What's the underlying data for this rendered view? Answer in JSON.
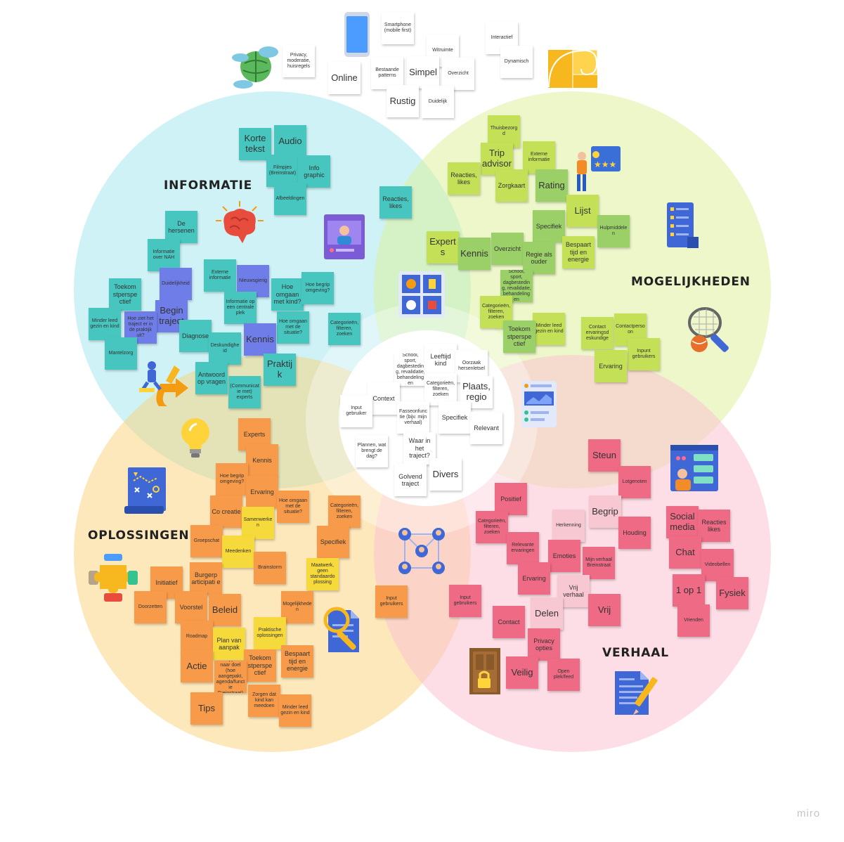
{
  "labels": {
    "informatie": "INFORMATIE",
    "mogelijkheden": "MOGELIJKHEDEN",
    "oplossingen": "OPLOSSINGEN",
    "verhaal": "VERHAAL"
  },
  "watermark": "miro",
  "colors": {
    "informatie_circle": "#cdf1f4",
    "mogelijkheden_circle": "#edf6c4",
    "oplossingen_circle": "#fce7b2",
    "verhaal_circle": "#fddbe4",
    "center_circle": "#ffffff"
  },
  "icons": [
    "globe-cloud-icon",
    "smartphone-icon",
    "golden-ratio-icon",
    "brain-icon",
    "video-profile-icon",
    "rating-person-icon",
    "checklist-icon",
    "grid-options-icon",
    "tennis-racket-icon",
    "runner-direction-icon",
    "lightbulb-icon",
    "analytics-card-icon",
    "map-plan-icon",
    "puzzle-icon",
    "network-people-icon",
    "document-search-icon",
    "social-profile-icon",
    "locked-door-icon",
    "document-pencil-icon"
  ],
  "notes": [
    {
      "text": "Privacy, moderatie, huisregels",
      "color": "white",
      "size": "sm"
    },
    {
      "text": "Smartphone (mobile first)",
      "color": "white",
      "size": "sm"
    },
    {
      "text": "Witruimte",
      "color": "white",
      "size": "sm"
    },
    {
      "text": "Interactief",
      "color": "white",
      "size": "sm"
    },
    {
      "text": "Dynamisch",
      "color": "white",
      "size": "sm"
    },
    {
      "text": "Online",
      "color": "white",
      "size": "lg"
    },
    {
      "text": "Bestaande patterns",
      "color": "white",
      "size": "sm"
    },
    {
      "text": "Simpel",
      "color": "white",
      "size": "lg"
    },
    {
      "text": "Overzicht",
      "color": "white",
      "size": "sm"
    },
    {
      "text": "Rustig",
      "color": "white",
      "size": "lg"
    },
    {
      "text": "Duidelijk",
      "color": "white",
      "size": "sm"
    },
    {
      "text": "Korte tekst",
      "color": "teal",
      "size": "lg"
    },
    {
      "text": "Audio",
      "color": "teal",
      "size": "lg"
    },
    {
      "text": "Filmpjes (Breinstraat)",
      "color": "teal",
      "size": "sm"
    },
    {
      "text": "Info graphic",
      "color": "teal",
      "size": "md"
    },
    {
      "text": "Afbeeldingen",
      "color": "teal",
      "size": "sm"
    },
    {
      "text": "Reacties, likes",
      "color": "teal",
      "size": "md"
    },
    {
      "text": "De hersenen",
      "color": "teal",
      "size": "md"
    },
    {
      "text": "Informatie over NAH",
      "color": "teal",
      "size": "sm"
    },
    {
      "text": "Duidelijkheid",
      "color": "blue",
      "size": "sm"
    },
    {
      "text": "Externe informatie",
      "color": "teal",
      "size": "sm"
    },
    {
      "text": "Nieuwsgierig",
      "color": "blue",
      "size": "sm"
    },
    {
      "text": "Hoe omgaan met kind?",
      "color": "teal",
      "size": "md"
    },
    {
      "text": "Hoe begrip omgeving?",
      "color": "teal",
      "size": "sm"
    },
    {
      "text": "Toekom stperspe ctief",
      "color": "teal",
      "size": "md"
    },
    {
      "text": "Begin traject",
      "color": "blue",
      "size": "lg"
    },
    {
      "text": "Informatie op een centrale plek",
      "color": "teal",
      "size": "sm"
    },
    {
      "text": "Hoe omgaan met de situatie?",
      "color": "teal",
      "size": "sm"
    },
    {
      "text": "Categorieën, filteren, zoeken",
      "color": "teal",
      "size": "sm"
    },
    {
      "text": "Minder leed gezin en kind",
      "color": "teal",
      "size": "sm"
    },
    {
      "text": "Hoe ziet het traject er in de praktijk uit?",
      "color": "blue",
      "size": "sm"
    },
    {
      "text": "Diagnose",
      "color": "teal",
      "size": "md"
    },
    {
      "text": "Kennis",
      "color": "blue",
      "size": "lg"
    },
    {
      "text": "Deskundigheid",
      "color": "teal",
      "size": "sm"
    },
    {
      "text": "Mantelzorg",
      "color": "teal",
      "size": "sm"
    },
    {
      "text": "Antwoord op vragen",
      "color": "teal",
      "size": "md"
    },
    {
      "text": "Praktijk",
      "color": "teal",
      "size": "lg"
    },
    {
      "text": "(Communicatie met) experts",
      "color": "teal",
      "size": "sm"
    },
    {
      "text": "Thuisbezorgd",
      "color": "lime",
      "size": "sm"
    },
    {
      "text": "Trip advisor",
      "color": "lime",
      "size": "lg"
    },
    {
      "text": "Externe informatie",
      "color": "lime",
      "size": "sm"
    },
    {
      "text": "Reacties, likes",
      "color": "lime",
      "size": "md"
    },
    {
      "text": "Zorgkaart",
      "color": "lime",
      "size": "md"
    },
    {
      "text": "Rating",
      "color": "green",
      "size": "lg"
    },
    {
      "text": "Lijst",
      "color": "lime",
      "size": "lg"
    },
    {
      "text": "Specifiek",
      "color": "green",
      "size": "md"
    },
    {
      "text": "Hulpmiddelen",
      "color": "green",
      "size": "sm"
    },
    {
      "text": "Experts",
      "color": "lime",
      "size": "lg"
    },
    {
      "text": "Kennis",
      "color": "green",
      "size": "lg"
    },
    {
      "text": "Overzicht",
      "color": "green",
      "size": "md"
    },
    {
      "text": "Regie als ouder",
      "color": "green",
      "size": "md"
    },
    {
      "text": "Bespaart tijd en energie",
      "color": "lime",
      "size": "md"
    },
    {
      "text": "School, sport, dagbesteding, revalidatie, behandelingen",
      "color": "green",
      "size": "sm"
    },
    {
      "text": "Categorieën, filteren, zoeken",
      "color": "lime",
      "size": "sm"
    },
    {
      "text": "Minder leed gezin en kind",
      "color": "lime",
      "size": "sm"
    },
    {
      "text": "Toekom stperspe ctief",
      "color": "green",
      "size": "md"
    },
    {
      "text": "Contact ervaringsd eskundige",
      "color": "lime",
      "size": "sm"
    },
    {
      "text": "Contactpersoon",
      "color": "lime",
      "size": "sm"
    },
    {
      "text": "Inpunt gebruikers",
      "color": "lime",
      "size": "sm"
    },
    {
      "text": "Ervaring",
      "color": "lime",
      "size": "md"
    },
    {
      "text": "School, sport, dagbesteding, revalidatie, behandelingen",
      "color": "white",
      "size": "sm"
    },
    {
      "text": "Leeftijd kind",
      "color": "white",
      "size": "md"
    },
    {
      "text": "Oorzaak hersenletsel",
      "color": "white",
      "size": "sm"
    },
    {
      "text": "Categorieën, filteren, zoeken",
      "color": "white",
      "size": "sm"
    },
    {
      "text": "Plaats, regio",
      "color": "white",
      "size": "lg"
    },
    {
      "text": "Context",
      "color": "white",
      "size": "md"
    },
    {
      "text": "Input gebruiker",
      "color": "white",
      "size": "sm"
    },
    {
      "text": "Fasseonfunctie (bijv. mijn verhaal)",
      "color": "white",
      "size": "sm"
    },
    {
      "text": "Specifiek",
      "color": "white",
      "size": "md"
    },
    {
      "text": "Relevant",
      "color": "white",
      "size": "md"
    },
    {
      "text": "Plannen, wat brengt de dag?",
      "color": "white",
      "size": "sm"
    },
    {
      "text": "Waar in het traject?",
      "color": "white",
      "size": "md"
    },
    {
      "text": "Golvend traject",
      "color": "white",
      "size": "md"
    },
    {
      "text": "Divers",
      "color": "white",
      "size": "lg"
    },
    {
      "text": "Experts",
      "color": "orng",
      "size": "md"
    },
    {
      "text": "Kennis",
      "color": "orng",
      "size": "md"
    },
    {
      "text": "Hoe begrip omgeving?",
      "color": "orng",
      "size": "sm"
    },
    {
      "text": "Ervaring",
      "color": "orng",
      "size": "md"
    },
    {
      "text": "Co creatie",
      "color": "orng",
      "size": "md"
    },
    {
      "text": "Samenwerken",
      "color": "yell",
      "size": "sm"
    },
    {
      "text": "Hoe omgaan met de situatie?",
      "color": "orng",
      "size": "sm"
    },
    {
      "text": "Categorieën, filteren, zoeken",
      "color": "orng",
      "size": "sm"
    },
    {
      "text": "Groepschat",
      "color": "orng",
      "size": "sm"
    },
    {
      "text": "Meedenken",
      "color": "yell",
      "size": "sm"
    },
    {
      "text": "Specifiek",
      "color": "orng",
      "size": "md"
    },
    {
      "text": "Burgerp articipati e",
      "color": "orng",
      "size": "md"
    },
    {
      "text": "Brainstorm",
      "color": "orng",
      "size": "sm"
    },
    {
      "text": "Maatwerk, geen standaardo plossing",
      "color": "yell",
      "size": "sm"
    },
    {
      "text": "Initiatief",
      "color": "orng",
      "size": "md"
    },
    {
      "text": "Doorzetten",
      "color": "orng",
      "size": "sm"
    },
    {
      "text": "Voorstel",
      "color": "orng",
      "size": "md"
    },
    {
      "text": "Beleid",
      "color": "orng",
      "size": "lg"
    },
    {
      "text": "Mogelijkheden",
      "color": "orng",
      "size": "sm"
    },
    {
      "text": "Praktische oplossingen",
      "color": "yell",
      "size": "sm"
    },
    {
      "text": "Roadmap",
      "color": "orng",
      "size": "sm"
    },
    {
      "text": "Plan van aanpak",
      "color": "yell",
      "size": "md"
    },
    {
      "text": "Toekom stperspe ctief",
      "color": "orng",
      "size": "md"
    },
    {
      "text": "Bespaart tijd en energie",
      "color": "orng",
      "size": "md"
    },
    {
      "text": "Actie",
      "color": "orng",
      "size": "lg"
    },
    {
      "text": "Stappen naar doel (hoe aangepakt, agenda/functie Breinstraat)",
      "color": "orng",
      "size": "sm"
    },
    {
      "text": "Tips",
      "color": "orng",
      "size": "lg"
    },
    {
      "text": "Zorgen dat kind kan meedoen",
      "color": "orng",
      "size": "sm"
    },
    {
      "text": "Minder leed gezin en kind",
      "color": "orng",
      "size": "sm"
    },
    {
      "text": "Input gebruikers",
      "color": "orng",
      "size": "sm"
    },
    {
      "text": "Steun",
      "color": "pink",
      "size": "lg"
    },
    {
      "text": "Lotgenoten",
      "color": "pink",
      "size": "sm"
    },
    {
      "text": "Positief",
      "color": "pink",
      "size": "md"
    },
    {
      "text": "Begrip",
      "color": "lpnk",
      "size": "lg"
    },
    {
      "text": "Social media",
      "color": "pink",
      "size": "lg"
    },
    {
      "text": "Reacties likes",
      "color": "pink",
      "size": "md"
    },
    {
      "text": "Categorieën, filteren, zoeken",
      "color": "pink",
      "size": "sm"
    },
    {
      "text": "Herkenning",
      "color": "lpnk",
      "size": "sm"
    },
    {
      "text": "Houding",
      "color": "pink",
      "size": "md"
    },
    {
      "text": "Relevante ervaringen",
      "color": "pink",
      "size": "sm"
    },
    {
      "text": "Emoties",
      "color": "pink",
      "size": "md"
    },
    {
      "text": "Chat",
      "color": "pink",
      "size": "lg"
    },
    {
      "text": "Videobellen",
      "color": "pink",
      "size": "sm"
    },
    {
      "text": "Mijn verhaal Breinstraat",
      "color": "pink",
      "size": "sm"
    },
    {
      "text": "Ervaring",
      "color": "pink",
      "size": "md"
    },
    {
      "text": "Vrij verhaal",
      "color": "lpnk",
      "size": "md"
    },
    {
      "text": "1 op 1",
      "color": "pink",
      "size": "lg"
    },
    {
      "text": "Fysiek",
      "color": "pink",
      "size": "lg"
    },
    {
      "text": "Input gebruikers",
      "color": "pink",
      "size": "sm"
    },
    {
      "text": "Vrij",
      "color": "pink",
      "size": "lg"
    },
    {
      "text": "Contact",
      "color": "pink",
      "size": "md"
    },
    {
      "text": "Delen",
      "color": "lpnk",
      "size": "lg"
    },
    {
      "text": "Vrienden",
      "color": "pink",
      "size": "sm"
    },
    {
      "text": "Privacy opties",
      "color": "pink",
      "size": "md"
    },
    {
      "text": "Veilig",
      "color": "pink",
      "size": "lg"
    },
    {
      "text": "Open plek/feed",
      "color": "pink",
      "size": "sm"
    }
  ]
}
